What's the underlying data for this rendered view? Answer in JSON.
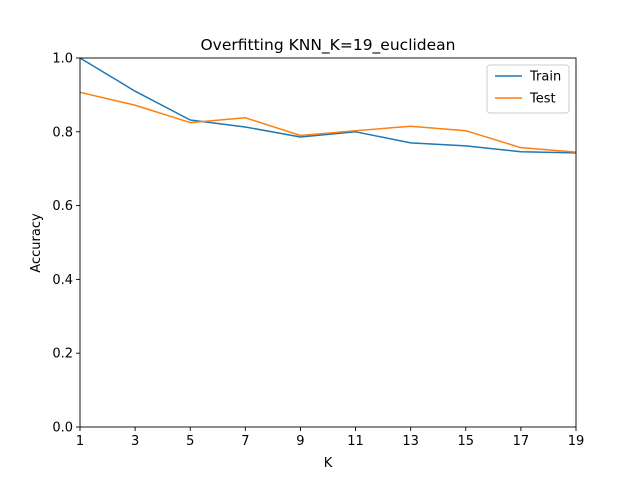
{
  "chart_data": {
    "type": "line",
    "title": "Overfitting KNN_K=19_euclidean",
    "xlabel": "K",
    "ylabel": "Accuracy",
    "x": [
      1,
      3,
      5,
      7,
      9,
      11,
      13,
      15,
      17,
      19
    ],
    "xlim": [
      1,
      19
    ],
    "ylim": [
      0,
      1.0
    ],
    "xticks": [
      "1",
      "3",
      "5",
      "7",
      "9",
      "11",
      "13",
      "15",
      "17",
      "19"
    ],
    "yticks": [
      "0.0",
      "0.2",
      "0.4",
      "0.6",
      "0.8",
      "1.0"
    ],
    "grid": false,
    "legend_position": "upper right",
    "series": [
      {
        "name": "Train",
        "color": "#1f77b4",
        "values": [
          1.0,
          0.91,
          0.832,
          0.813,
          0.786,
          0.8,
          0.77,
          0.762,
          0.746,
          0.743
        ]
      },
      {
        "name": "Test",
        "color": "#ff7f0e",
        "values": [
          0.907,
          0.872,
          0.825,
          0.838,
          0.79,
          0.803,
          0.815,
          0.803,
          0.757,
          0.745
        ]
      }
    ]
  }
}
